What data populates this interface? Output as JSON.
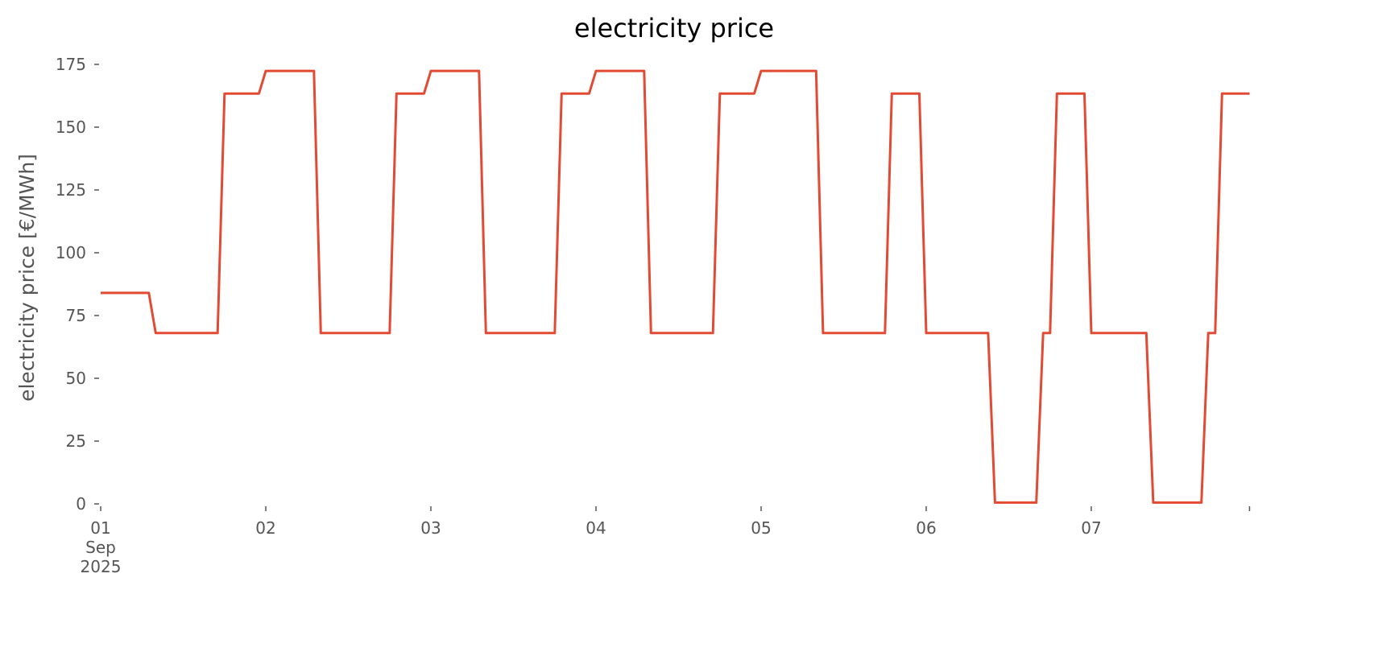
{
  "chart_data": {
    "type": "line",
    "title": "electricity price",
    "xlabel": "",
    "ylabel": "electricity price [€/MWh]",
    "ylim": [
      0,
      180
    ],
    "xlim": [
      "2025-09-01 00:00",
      "2025-09-07 23:00"
    ],
    "grid": false,
    "line_color": "#E24A33",
    "yticks": [
      0,
      25,
      50,
      75,
      100,
      125,
      150,
      175
    ],
    "xticks": [
      {
        "t": "2025-09-01 00:00",
        "label": [
          "01",
          "Sep",
          "2025"
        ]
      },
      {
        "t": "2025-09-02 00:00",
        "label": [
          "02"
        ]
      },
      {
        "t": "2025-09-03 00:00",
        "label": [
          "03"
        ]
      },
      {
        "t": "2025-09-04 00:00",
        "label": [
          "04"
        ]
      },
      {
        "t": "2025-09-05 00:00",
        "label": [
          "05"
        ]
      },
      {
        "t": "2025-09-06 00:00",
        "label": [
          "06"
        ]
      },
      {
        "t": "2025-09-07 00:00",
        "label": [
          "07"
        ]
      },
      {
        "t": "2025-09-07 23:00",
        "label": []
      }
    ],
    "series": [
      {
        "points": [
          [
            "2025-09-01 00:00",
            84
          ],
          [
            "2025-09-01 07:00",
            84
          ],
          [
            "2025-09-01 08:00",
            68
          ],
          [
            "2025-09-01 17:00",
            68
          ],
          [
            "2025-09-01 18:00",
            163.4
          ],
          [
            "2025-09-01 23:00",
            163.4
          ],
          [
            "2025-09-02 00:00",
            172.4
          ],
          [
            "2025-09-02 07:00",
            172.4
          ],
          [
            "2025-09-02 08:00",
            68
          ],
          [
            "2025-09-02 18:00",
            68
          ],
          [
            "2025-09-02 19:00",
            163.4
          ],
          [
            "2025-09-02 23:00",
            163.4
          ],
          [
            "2025-09-03 00:00",
            172.4
          ],
          [
            "2025-09-03 07:00",
            172.4
          ],
          [
            "2025-09-03 08:00",
            68
          ],
          [
            "2025-09-03 18:00",
            68
          ],
          [
            "2025-09-03 19:00",
            163.4
          ],
          [
            "2025-09-03 23:00",
            163.4
          ],
          [
            "2025-09-04 00:00",
            172.4
          ],
          [
            "2025-09-04 07:00",
            172.4
          ],
          [
            "2025-09-04 08:00",
            68
          ],
          [
            "2025-09-04 17:00",
            68
          ],
          [
            "2025-09-04 18:00",
            163.4
          ],
          [
            "2025-09-04 23:00",
            163.4
          ],
          [
            "2025-09-05 00:00",
            172.4
          ],
          [
            "2025-09-05 08:00",
            172.4
          ],
          [
            "2025-09-05 09:00",
            68
          ],
          [
            "2025-09-05 18:00",
            68
          ],
          [
            "2025-09-05 19:00",
            163.4
          ],
          [
            "2025-09-05 23:00",
            163.4
          ],
          [
            "2025-09-06 00:00",
            68
          ],
          [
            "2025-09-06 09:00",
            68
          ],
          [
            "2025-09-06 10:00",
            0.5
          ],
          [
            "2025-09-06 16:00",
            0.5
          ],
          [
            "2025-09-06 17:00",
            68
          ],
          [
            "2025-09-06 18:00",
            68
          ],
          [
            "2025-09-06 19:00",
            163.4
          ],
          [
            "2025-09-06 23:00",
            163.4
          ],
          [
            "2025-09-07 00:00",
            68
          ],
          [
            "2025-09-07 08:00",
            68
          ],
          [
            "2025-09-07 09:00",
            0.5
          ],
          [
            "2025-09-07 16:00",
            0.5
          ],
          [
            "2025-09-07 17:00",
            68
          ],
          [
            "2025-09-07 18:00",
            68
          ],
          [
            "2025-09-07 19:00",
            163.4
          ],
          [
            "2025-09-07 23:00",
            163.4
          ]
        ]
      }
    ]
  }
}
